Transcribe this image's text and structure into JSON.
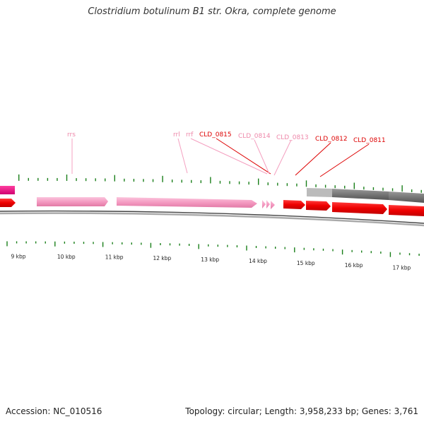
{
  "header": {
    "title": "Clostridium botulinum B1 str. Okra, complete genome"
  },
  "footer": {
    "accession_label": "Accession:",
    "accession": "NC_010516",
    "topology_label": "Topology:",
    "topology": "circular",
    "length_label": "Length:",
    "length": "3,958,233 bp",
    "genes_label": "Genes:",
    "genes": "3,761"
  },
  "axis": {
    "labels": [
      "9 kbp",
      "10 kbp",
      "11 kbp",
      "12 kbp",
      "13 kbp",
      "14 kbp",
      "15 kbp",
      "16 kbp",
      "17 kbp"
    ]
  },
  "colors": {
    "rna": "#f49ac1",
    "cds": "#ee0000",
    "cds_dark": "#cc0000",
    "label_rna": "#ee88aa",
    "label_cds": "#dd0000",
    "tick": "#1a7f1a",
    "backbone": "#777777"
  },
  "gene_labels": [
    {
      "text": "rrs",
      "kind": "rna"
    },
    {
      "text": "rrl",
      "kind": "rna"
    },
    {
      "text": "rrf",
      "kind": "rna"
    },
    {
      "text": "CLD_0815",
      "kind": "cds"
    },
    {
      "text": "CLD_0814",
      "kind": "rna"
    },
    {
      "text": "CLD_0813",
      "kind": "rna"
    },
    {
      "text": "CLD_0812",
      "kind": "cds"
    },
    {
      "text": "CLD_0811",
      "kind": "cds"
    }
  ]
}
